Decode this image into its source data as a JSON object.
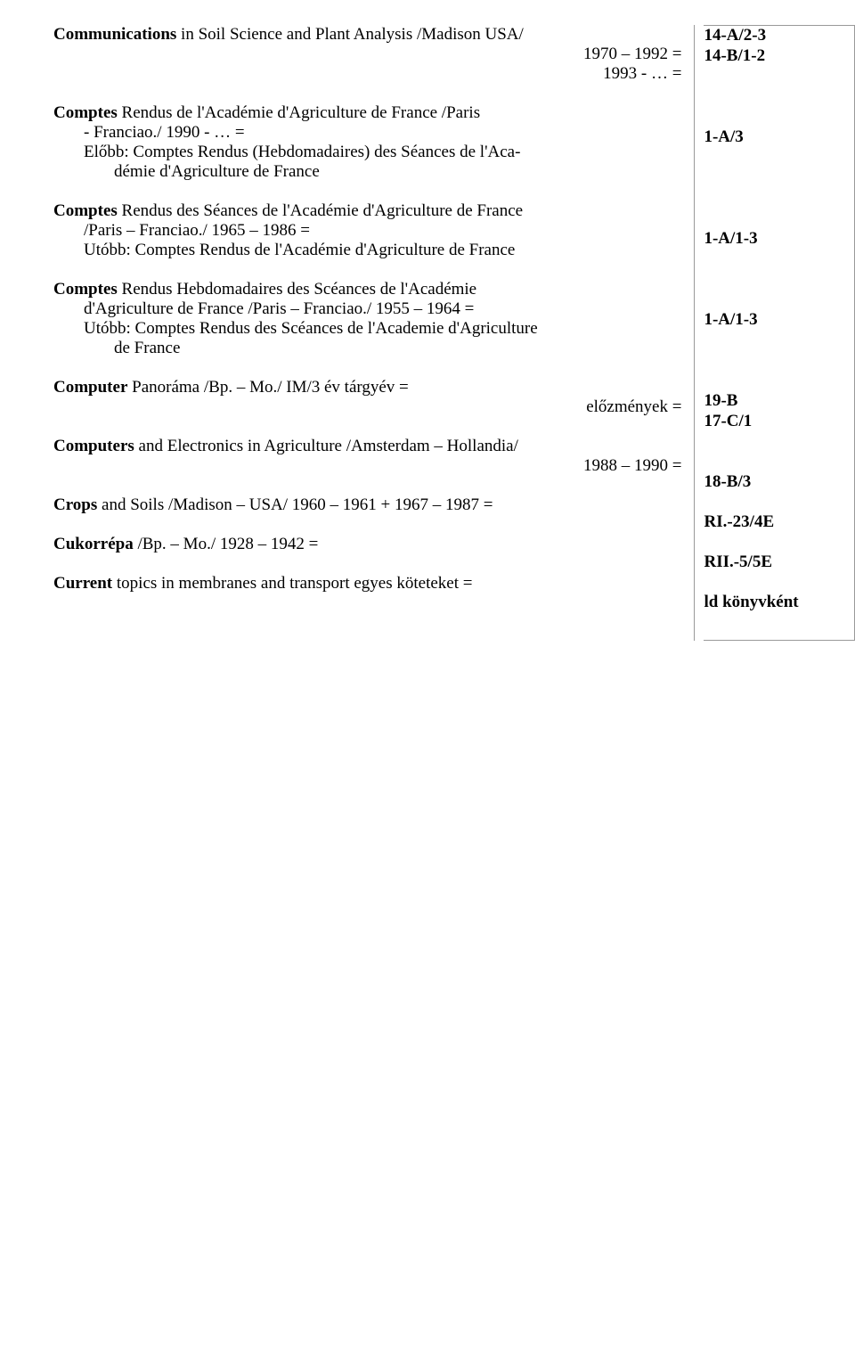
{
  "entries": [
    {
      "lines": [
        {
          "pre_bold": "Communications",
          "text": " in Soil Science and Plant Analysis  /Madison USA/",
          "cls": ""
        },
        {
          "text": "1970 – 1992 =",
          "cls": "right-align"
        },
        {
          "text": "1993 - …   =",
          "cls": "right-align"
        }
      ],
      "codes": [
        "14-A/2-3",
        "14-B/1-2"
      ],
      "code_offset": 0
    },
    {
      "lines": [
        {
          "pre_bold": "Comptes",
          "text": " Rendus de l'Académie d'Agriculture de France  /Paris",
          "cls": ""
        },
        {
          "text": "- Franciao./                                                                      1990 - … =",
          "cls": "indent1"
        },
        {
          "text": "Előbb: Comptes Rendus (Hebdomadaires) des Séances de l'Aca-",
          "cls": "indent1"
        },
        {
          "text": "démie d'Agriculture de France",
          "cls": "indent2"
        }
      ],
      "codes": [
        "1-A/3"
      ],
      "code_offset": 1
    },
    {
      "lines": [
        {
          "pre_bold": "Comptes",
          "text": " Rendus des Séances de l'Académie d'Agriculture de France",
          "cls": ""
        },
        {
          "text": "/Paris – Franciao./                                                       1965 – 1986 =",
          "cls": "indent1"
        },
        {
          "text": "Utóbb: Comptes Rendus de l'Académie d'Agriculture de France",
          "cls": "indent1"
        }
      ],
      "codes": [
        "1-A/1-3"
      ],
      "code_offset": 1
    },
    {
      "lines": [
        {
          "pre_bold": "Comptes",
          "text": " Rendus Hebdomadaires des Scéances de l'Académie",
          "cls": ""
        },
        {
          "text": "d'Agriculture de France  /Paris – Franciao./               1955 – 1964 =",
          "cls": "indent1"
        },
        {
          "text": "Utóbb: Comptes Rendus des Scéances de l'Academie d'Agriculture",
          "cls": "indent1"
        },
        {
          "text": "de France",
          "cls": "indent2"
        }
      ],
      "codes": [
        "1-A/1-3"
      ],
      "code_offset": 1
    },
    {
      "lines": [
        {
          "pre_bold": "Computer",
          "text": " Panoráma  /Bp. – Mo./                              IM/3 év  tárgyév =",
          "cls": ""
        },
        {
          "text": "előzmények =",
          "cls": "right-align"
        }
      ],
      "codes": [
        "19-B",
        "17-C/1"
      ],
      "code_offset": 0
    },
    {
      "lines": [
        {
          "pre_bold": "Computers",
          "text": " and Electronics in Agriculture  /Amsterdam – Hollandia/",
          "cls": ""
        },
        {
          "text": "1988 – 1990 =",
          "cls": "right-align"
        }
      ],
      "codes": [
        "18-B/3"
      ],
      "code_offset": 1
    },
    {
      "lines": [
        {
          "pre_bold": "Crops",
          "text": " and Soils  /Madison – USA/              1960 – 1961 +  1967 – 1987 =",
          "cls": ""
        }
      ],
      "codes": [
        "RI.-23/4E"
      ],
      "code_offset": 0
    },
    {
      "lines": [
        {
          "pre_bold": "Cukorrépa",
          "text": "  /Bp. – Mo./                                                       1928 – 1942 =",
          "cls": ""
        }
      ],
      "codes": [
        "RII.-5/5E"
      ],
      "code_offset": 0
    },
    {
      "lines": [
        {
          "pre_bold": "Current",
          "text": " topics in membranes and transport                  egyes köteteket =",
          "cls": ""
        }
      ],
      "codes": [
        "ld könyvként"
      ],
      "code_offset": 0
    }
  ]
}
